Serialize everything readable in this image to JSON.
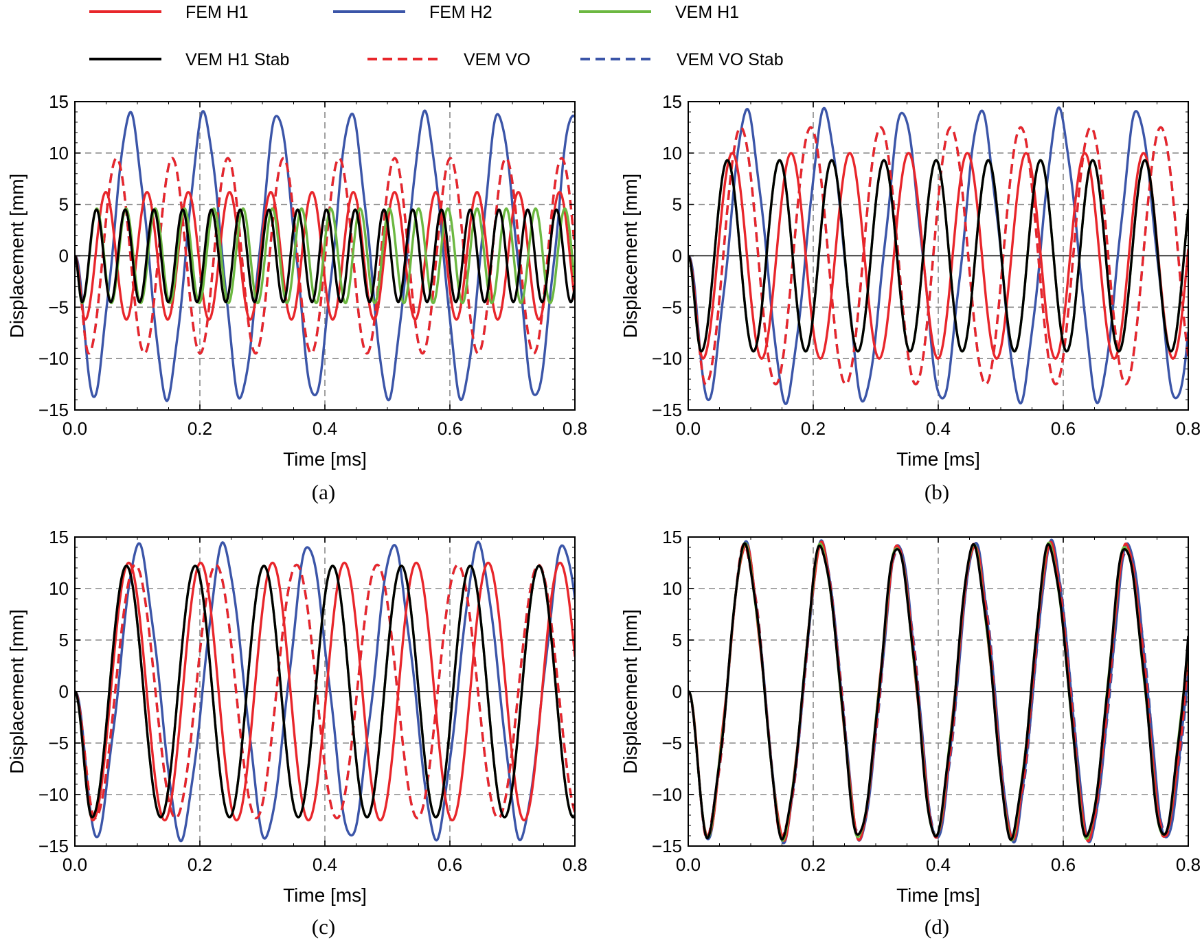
{
  "legend": [
    {
      "label": "FEM H1",
      "color": "#e8262b",
      "dash": false
    },
    {
      "label": "FEM H2",
      "color": "#3b55a8",
      "dash": false
    },
    {
      "label": "VEM H1",
      "color": "#6cb841",
      "dash": false
    },
    {
      "label": "VEM H1 Stab",
      "color": "#000000",
      "dash": true,
      "dash_off": true
    },
    {
      "label": "VEM VO",
      "color": "#e8262b",
      "dash": true
    },
    {
      "label": "VEM VO Stab",
      "color": "#3b55a8",
      "dash": true
    }
  ],
  "chart_data": [
    {
      "id": "a",
      "caption": "(a)",
      "type": "line",
      "xlabel": "Time [ms]",
      "ylabel": "Displacement [mm]",
      "xlim": [
        0,
        0.8
      ],
      "ylim": [
        -15,
        15
      ],
      "xticks": [
        "0.0",
        "0.2",
        "0.4",
        "0.6",
        "0.8"
      ],
      "yticks": [
        "15",
        "10",
        "5",
        "0",
        "−5",
        "−10",
        "−15"
      ],
      "series": [
        {
          "name": "FEM H2",
          "amplitude": 13.3,
          "period": 0.118,
          "shape": "rough"
        },
        {
          "name": "VEM VO Stab",
          "amplitude": 9.5,
          "period": 0.089
        },
        {
          "name": "VEM VO",
          "amplitude": 9.5,
          "period": 0.089
        },
        {
          "name": "FEM H1",
          "amplitude": 6.2,
          "period": 0.066
        },
        {
          "name": "VEM H1",
          "amplitude": 4.6,
          "period": 0.0468
        },
        {
          "name": "VEM H1 Stab",
          "amplitude": 4.5,
          "period": 0.046
        }
      ]
    },
    {
      "id": "b",
      "caption": "(b)",
      "type": "line",
      "xlabel": "Time [ms]",
      "ylabel": "Displacement [mm]",
      "xlim": [
        0,
        0.8
      ],
      "ylim": [
        -15,
        15
      ],
      "xticks": [
        "0.0",
        "0.2",
        "0.4",
        "0.6",
        "0.8"
      ],
      "yticks": [
        "15",
        "10",
        "5",
        "0",
        "−5",
        "−10",
        "−15"
      ],
      "series": [
        {
          "name": "FEM H2",
          "amplitude": 13.6,
          "period": 0.125,
          "shape": "rough"
        },
        {
          "name": "VEM VO Stab",
          "amplitude": 12.5,
          "period": 0.112
        },
        {
          "name": "VEM VO",
          "amplitude": 12.5,
          "period": 0.112
        },
        {
          "name": "FEM H1",
          "amplitude": 10.0,
          "period": 0.094
        },
        {
          "name": "VEM H1",
          "amplitude": 9.3,
          "period": 0.0835
        },
        {
          "name": "VEM H1 Stab",
          "amplitude": 9.3,
          "period": 0.0835
        }
      ]
    },
    {
      "id": "c",
      "caption": "(c)",
      "type": "line",
      "xlabel": "Time [ms]",
      "ylabel": "Displacement [mm]",
      "xlim": [
        0,
        0.8
      ],
      "ylim": [
        -15,
        15
      ],
      "xticks": [
        "0.0",
        "0.2",
        "0.4",
        "0.6",
        "0.8"
      ],
      "yticks": [
        "15",
        "10",
        "5",
        "0",
        "−5",
        "−10",
        "−15"
      ],
      "series": [
        {
          "name": "FEM H2",
          "amplitude": 13.7,
          "period": 0.136,
          "shape": "rough"
        },
        {
          "name": "VEM VO Stab",
          "amplitude": 12.3,
          "period": 0.129
        },
        {
          "name": "VEM VO",
          "amplitude": 12.3,
          "period": 0.129
        },
        {
          "name": "FEM H1",
          "amplitude": 12.5,
          "period": 0.115
        },
        {
          "name": "VEM H1",
          "amplitude": 12.2,
          "period": 0.11
        },
        {
          "name": "VEM H1 Stab",
          "amplitude": 12.2,
          "period": 0.11
        }
      ]
    },
    {
      "id": "d",
      "caption": "(d)",
      "type": "line",
      "xlabel": "Time [ms]",
      "ylabel": "Displacement [mm]",
      "xlim": [
        0,
        0.8
      ],
      "ylim": [
        -15,
        15
      ],
      "xticks": [
        "0.0",
        "0.2",
        "0.4",
        "0.6",
        "0.8"
      ],
      "yticks": [
        "15",
        "10",
        "5",
        "0",
        "−5",
        "−10",
        "−15"
      ],
      "series": [
        {
          "name": "FEM H2",
          "amplitude": 13.9,
          "period": 0.1225,
          "shape": "rough"
        },
        {
          "name": "VEM VO Stab",
          "amplitude": 13.8,
          "period": 0.1225,
          "shape": "rough"
        },
        {
          "name": "VEM VO",
          "amplitude": 13.8,
          "period": 0.1222,
          "shape": "rough"
        },
        {
          "name": "FEM H1",
          "amplitude": 13.7,
          "period": 0.122,
          "shape": "rough"
        },
        {
          "name": "VEM H1",
          "amplitude": 13.7,
          "period": 0.1218,
          "shape": "rough"
        },
        {
          "name": "VEM H1 Stab",
          "amplitude": 13.7,
          "period": 0.1218,
          "shape": "rough"
        }
      ]
    }
  ]
}
